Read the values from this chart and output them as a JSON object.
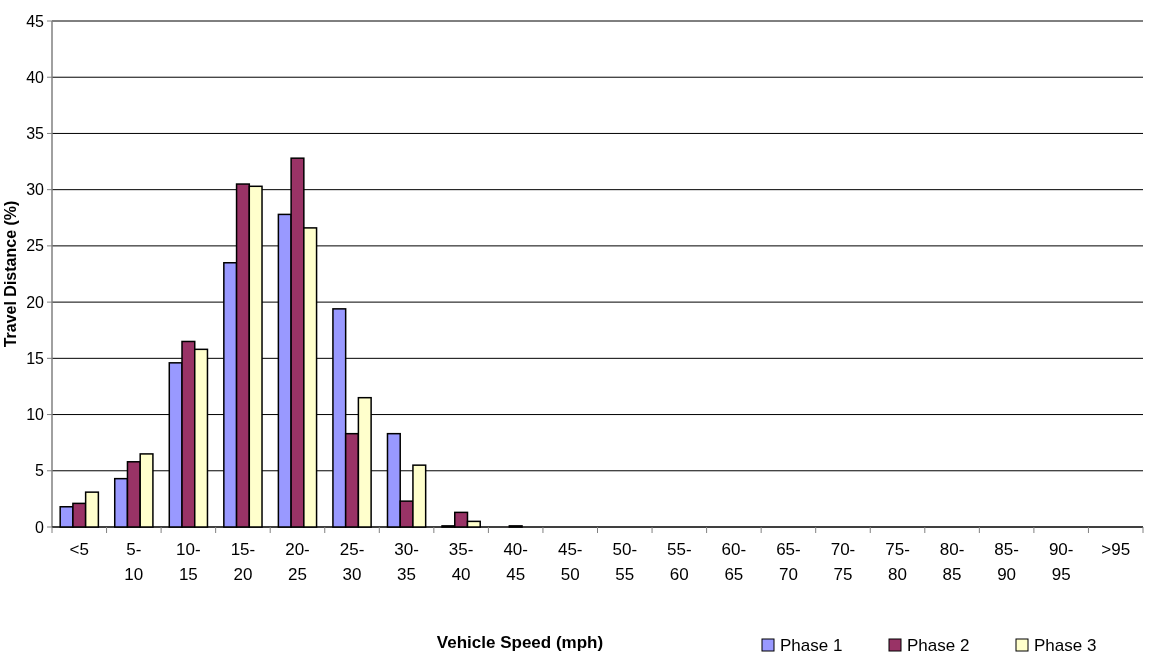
{
  "chart_data": {
    "type": "bar",
    "xlabel": "Vehicle Speed (mph)",
    "ylabel": "Travel Distance (%)",
    "categories": [
      "<5",
      "5-10",
      "10-15",
      "15-20",
      "20-25",
      "25-30",
      "30-35",
      "35-40",
      "40-45",
      "45-50",
      "50-55",
      "55-60",
      "60-65",
      "65-70",
      "70-75",
      "75-80",
      "80-85",
      "85-90",
      "90-95",
      ">95"
    ],
    "series": [
      {
        "name": "Phase 1",
        "color": "#9999ff",
        "values": [
          1.8,
          4.3,
          14.6,
          23.5,
          27.8,
          19.4,
          8.3,
          0.1,
          0,
          0,
          0,
          0,
          0,
          0,
          0,
          0,
          0,
          0,
          0,
          0
        ]
      },
      {
        "name": "Phase 2",
        "color": "#993366",
        "values": [
          2.1,
          5.8,
          16.5,
          30.5,
          32.8,
          8.3,
          2.3,
          1.3,
          0.1,
          0,
          0,
          0,
          0,
          0,
          0,
          0,
          0,
          0,
          0,
          0
        ]
      },
      {
        "name": "Phase 3",
        "color": "#ffffcc",
        "values": [
          3.1,
          6.5,
          15.8,
          30.3,
          26.6,
          11.5,
          5.5,
          0.5,
          0,
          0,
          0,
          0,
          0,
          0,
          0,
          0,
          0,
          0,
          0,
          0
        ]
      }
    ],
    "ylim": [
      0,
      45
    ],
    "yticks": [
      0,
      5,
      10,
      15,
      20,
      25,
      30,
      35,
      40,
      45
    ],
    "grid": "y",
    "legend": "bottom right"
  }
}
